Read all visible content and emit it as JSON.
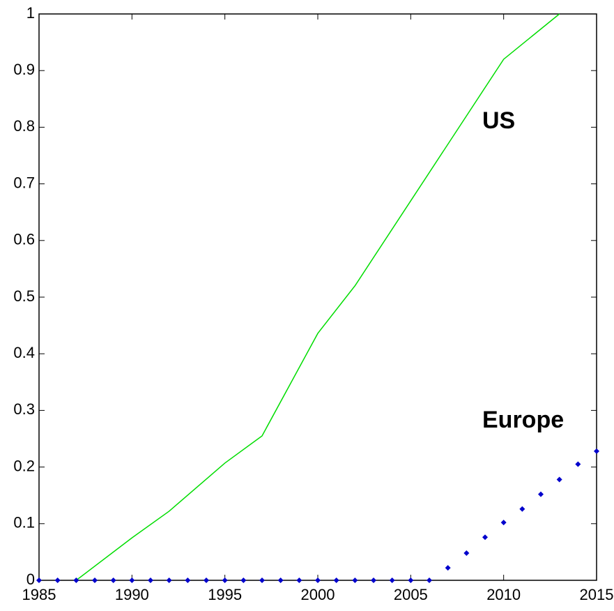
{
  "chart_data": {
    "type": "line",
    "series": [
      {
        "name": "US",
        "color": "#00dd00",
        "style": "line",
        "x": [
          1987,
          1990,
          1992,
          1995,
          1997,
          2000,
          2002,
          2005,
          2010,
          2013
        ],
        "values": [
          0,
          0.075,
          0.122,
          0.207,
          0.255,
          0.436,
          0.52,
          0.67,
          0.92,
          1.0
        ]
      },
      {
        "name": "Europe",
        "color": "#0000cc",
        "style": "markers",
        "x": [
          1985,
          1986,
          1987,
          1988,
          1989,
          1990,
          1991,
          1992,
          1993,
          1994,
          1995,
          1996,
          1997,
          1998,
          1999,
          2000,
          2001,
          2002,
          2003,
          2004,
          2005,
          2006,
          2007,
          2008,
          2009,
          2010,
          2011,
          2012,
          2013,
          2014,
          2015
        ],
        "values": [
          0,
          0,
          0,
          0,
          0,
          0,
          0,
          0,
          0,
          0,
          0,
          0,
          0,
          0,
          0,
          0,
          0,
          0,
          0,
          0,
          0,
          0,
          0.022,
          0.048,
          0.076,
          0.102,
          0.126,
          0.152,
          0.178,
          0.205,
          0.228
        ]
      }
    ],
    "xlim": [
      1985,
      2015
    ],
    "xticks": [
      1985,
      1990,
      1995,
      2000,
      2005,
      2010,
      2015
    ],
    "ylim": [
      0,
      1
    ],
    "yticks": [
      0,
      0.1,
      0.2,
      0.3,
      0.4,
      0.5,
      0.6,
      0.7,
      0.8,
      0.9,
      1
    ]
  }
}
